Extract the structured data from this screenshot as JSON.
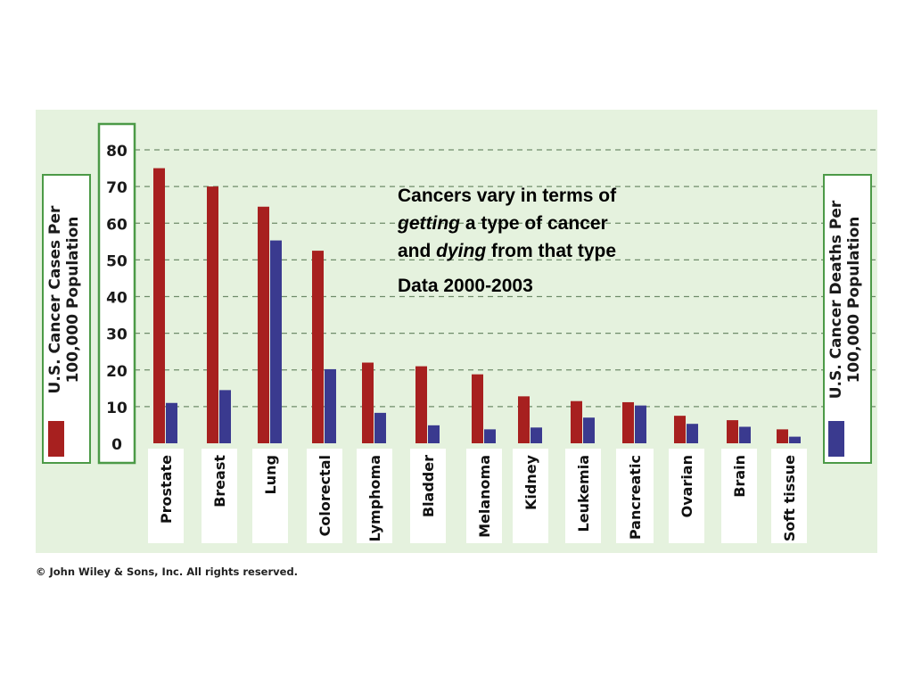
{
  "chart_data": {
    "type": "bar",
    "categories": [
      "Prostate",
      "Breast",
      "Lung",
      "Colorectal",
      "Lymphoma",
      "Bladder",
      "Melanoma",
      "Kidney",
      "Leukemia",
      "Pancreatic",
      "Ovarian",
      "Brain",
      "Soft tissue"
    ],
    "series": [
      {
        "name": "U.S. Cancer Cases Per 100,000 Population",
        "values": [
          75,
          70,
          64.5,
          52.5,
          22,
          21,
          18.8,
          12.8,
          11.5,
          11.2,
          7.5,
          6.3,
          3.8
        ],
        "color": "#a7201f"
      },
      {
        "name": "U.S. Cancer Deaths Per 100,000 Population",
        "values": [
          11,
          14.5,
          55.3,
          20.2,
          8.3,
          4.9,
          3.8,
          4.3,
          7,
          10.3,
          5.3,
          4.5,
          1.8
        ],
        "color": "#3a3a8f"
      }
    ],
    "yticks": [
      0,
      10,
      20,
      30,
      40,
      50,
      60,
      70,
      80
    ],
    "ylim": [
      0,
      80
    ],
    "grid": true,
    "legend_placement": "left and right axis titles"
  },
  "annotation": {
    "line1": "Cancers vary in terms of",
    "line2_italic": "getting",
    "line2_rest": " a type of cancer",
    "line3_start": "and ",
    "line3_italic": "dying",
    "line3_rest": " from that type",
    "data_range": "Data 2000-2003"
  },
  "copyright": "© John Wiley & Sons, Inc. All rights reserved.",
  "colors": {
    "panel": "#e5f2de",
    "frame": "#4c9a47",
    "cases": "#a7201f",
    "deaths": "#3a3a8f"
  }
}
